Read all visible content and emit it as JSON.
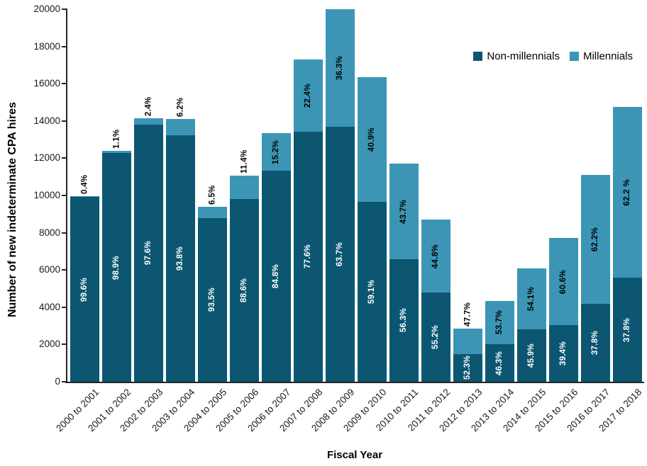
{
  "chart_data": {
    "type": "bar",
    "stacked": true,
    "title": "",
    "xlabel": "Fiscal Year",
    "ylabel": "Number of new indeterminate CPA hires",
    "ylim": [
      0,
      20000
    ],
    "ytick_step": 2000,
    "ytick_labels": [
      "0",
      "2000",
      "4000",
      "6000",
      "8000",
      "10000",
      "12000",
      "14000",
      "16000",
      "18000",
      "20000"
    ],
    "grid": false,
    "legend_position": "top-right",
    "categories": [
      "2000 to 2001",
      "2001 to 2002",
      "2002 to 2003",
      "2003 to 2004",
      "2004 to 2005",
      "2005 to 2006",
      "2006 to 2007",
      "2007 to 2008",
      "2008 to 2009",
      "2009 to 2010",
      "2010 to 2011",
      "2011 to 2012",
      "2012 to 2013",
      "2013 to 2014",
      "2014 to 2015",
      "2015 to 2016",
      "2016 to 2017",
      "2017 to 2018"
    ],
    "series": [
      {
        "name": "Non-millennials",
        "color": "#0C5672",
        "values": [
          9910,
          12265,
          13810,
          13225,
          8790,
          9815,
          11320,
          13425,
          13695,
          9655,
          6585,
          4795,
          1495,
          2010,
          2800,
          3035,
          4195,
          5575
        ],
        "pct_labels": [
          "99.6%",
          "98.9%",
          "97.6%",
          "93.8%",
          "93.5%",
          "88.6%",
          "84.8%",
          "77.6%",
          "63.7%",
          "59.1%",
          "56.3%",
          "55.2%",
          "52.3%",
          "46.3%",
          "45.9%",
          "39.4%",
          "37.8%",
          "37.8%"
        ],
        "label_color": "#ffffff"
      },
      {
        "name": "Millennials",
        "color": "#3C95B5",
        "values": [
          40,
          135,
          340,
          875,
          610,
          1265,
          2030,
          3875,
          7805,
          6685,
          5115,
          3895,
          1365,
          2330,
          3300,
          4665,
          6905,
          9175
        ],
        "pct_labels": [
          "0.4%",
          "1.1%",
          "2.4%",
          "6.2%",
          "6.5%",
          "11.4%",
          "15.2%",
          "22.4%",
          "36.3%",
          "40.9%",
          "43.7%",
          "44.8%",
          "47.7%",
          "53.7%",
          "54.1%",
          "60.6%",
          "62.2%",
          "62.2 %"
        ],
        "label_color": "#000000"
      }
    ]
  }
}
